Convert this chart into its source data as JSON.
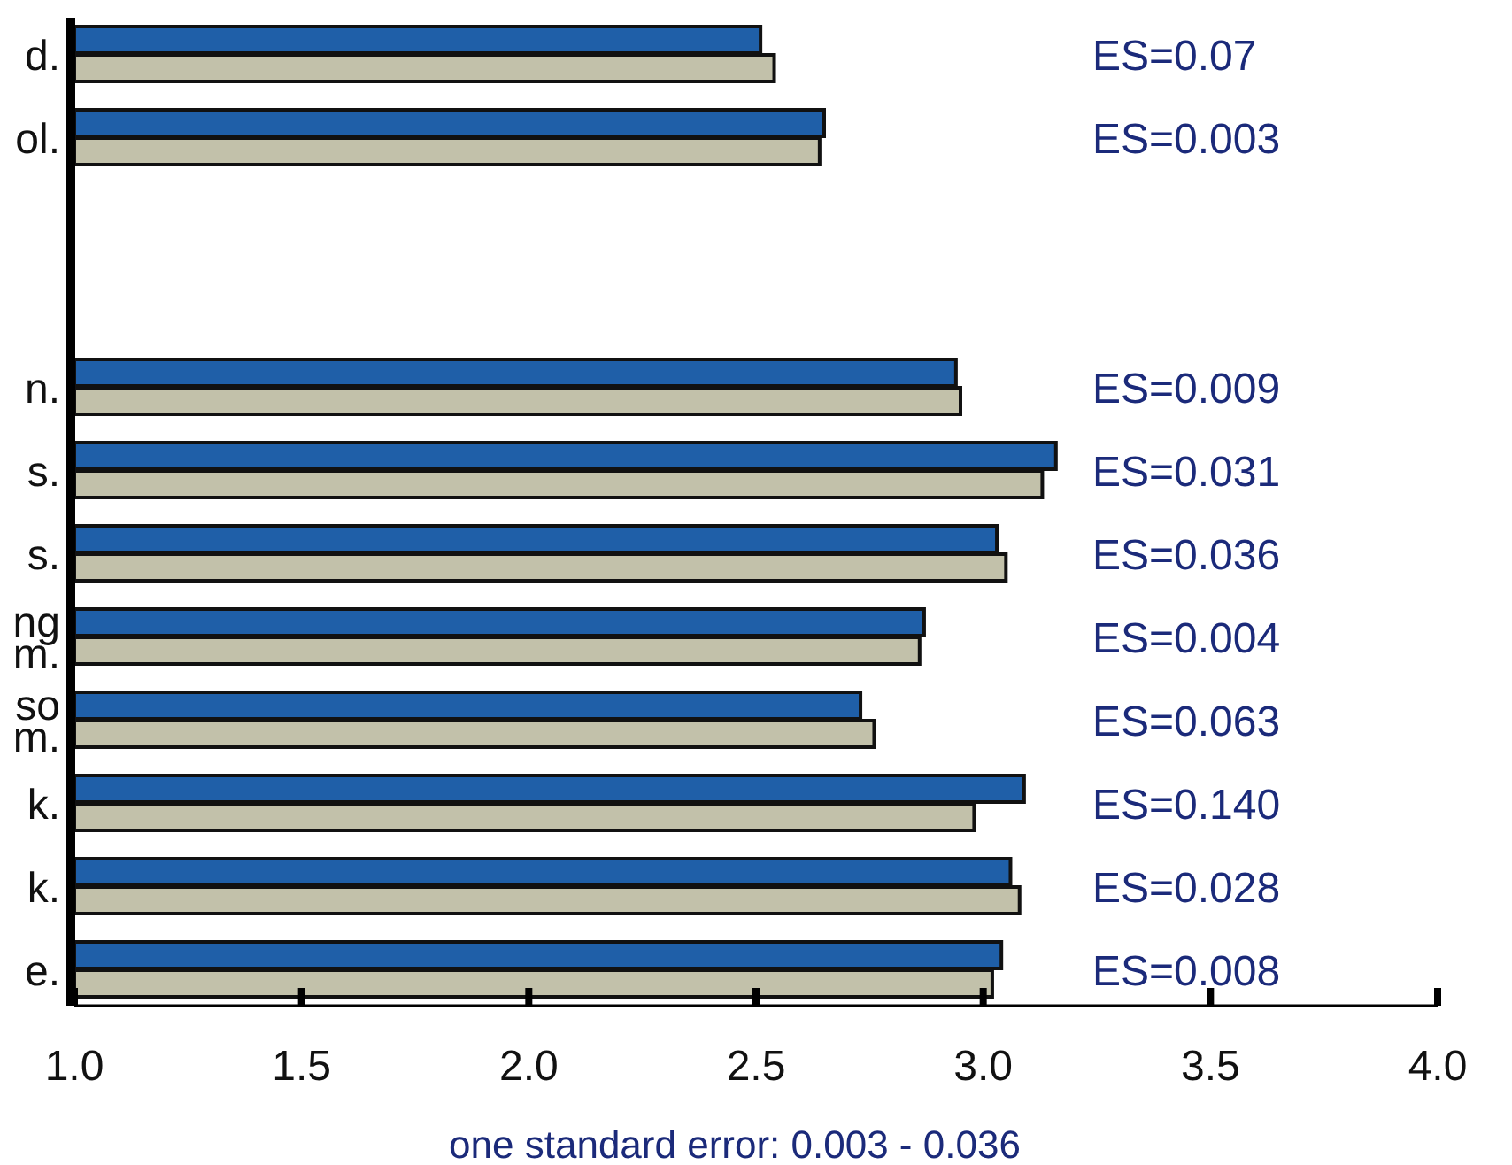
{
  "chart_data": {
    "type": "bar",
    "orientation": "horizontal",
    "xlabel": "one standard error: 0.003 - 0.036",
    "categories": [
      "d.",
      "ol.",
      null,
      null,
      "n.",
      "s.",
      "s.",
      "ng\nm.",
      "so\nm.",
      "k.",
      "k.",
      "e."
    ],
    "series": [
      {
        "color": "#1f5fa8",
        "values": [
          2.51,
          2.65,
          null,
          null,
          2.94,
          3.16,
          3.03,
          2.87,
          2.73,
          3.09,
          3.06,
          3.04
        ]
      },
      {
        "color": "#c2c1aa",
        "values": [
          2.54,
          2.64,
          null,
          null,
          2.95,
          3.13,
          3.05,
          2.86,
          2.76,
          2.98,
          3.08,
          3.02
        ]
      }
    ],
    "xlim": [
      1.0,
      4.0
    ],
    "xticks": [
      {
        "value": 1,
        "label": "1.0"
      },
      {
        "value": 1.5,
        "label": "1.5"
      },
      {
        "value": 2,
        "label": "2.0"
      },
      {
        "value": 2.5,
        "label": "2.5"
      },
      {
        "value": 3,
        "label": "3.0"
      },
      {
        "value": 3.5,
        "label": "3.5"
      },
      {
        "value": 4,
        "label": "4.0"
      }
    ],
    "annotations": [
      "ES=0.07",
      "ES=0.003",
      "ES=0.009",
      "ES=0.031",
      "ES=0.036",
      "ES=0.004",
      "ES=0.063",
      "ES=0.140",
      "ES=0.028",
      "ES=0.008"
    ],
    "grid": false
  }
}
